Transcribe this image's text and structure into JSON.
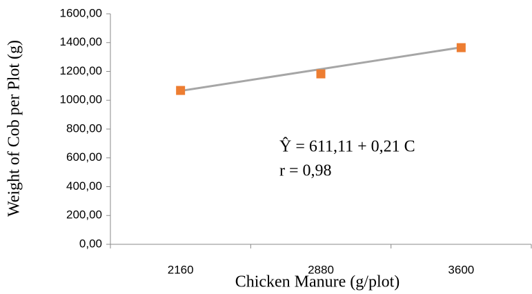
{
  "chart_data": {
    "type": "line",
    "x_label": "Chicken Manure (g/plot)",
    "y_label": "Weight of Cob per Plot (g)",
    "categories": [
      "2160",
      "2880",
      "3600"
    ],
    "series": [
      {
        "color": "#ed7d31",
        "values": [
          1068,
          1183,
          1365
        ]
      }
    ],
    "trendline": {
      "color": "#a6a6a6",
      "values": [
        1065,
        1367
      ]
    },
    "annotations": [
      "Ŷ  = 611,11 + 0,21 C",
      "r  = 0,98"
    ],
    "ylim": [
      0,
      1600
    ],
    "yticks": [
      {
        "value": 0,
        "label": "0,00"
      },
      {
        "value": 200,
        "label": "200,00"
      },
      {
        "value": 400,
        "label": "400,00"
      },
      {
        "value": 600,
        "label": "600,00"
      },
      {
        "value": 800,
        "label": "800,00"
      },
      {
        "value": 1000,
        "label": "1000,00"
      },
      {
        "value": 1200,
        "label": "1200,00"
      },
      {
        "value": 1400,
        "label": "1400,00"
      },
      {
        "value": 1600,
        "label": "1600,00"
      }
    ]
  }
}
